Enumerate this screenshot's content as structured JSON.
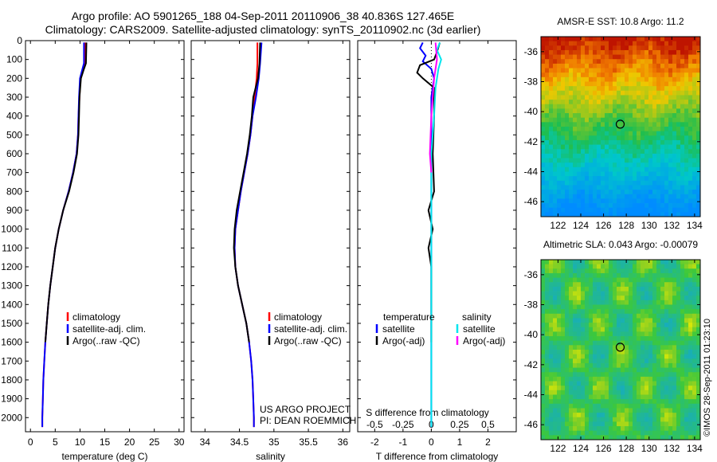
{
  "header": {
    "line1": "Argo profile: AO 5901265_188 04-Sep-2011 20110906_38 40.836S 127.465E",
    "line2": "Climatology: CARS2009. Satellite-adjusted climatology: synTS_20110902.nc (3d earlier)"
  },
  "colors": {
    "climatology": "#ff0000",
    "satellite": "#0000ff",
    "argo": "#000000",
    "salinity_satellite": "#00e5ee",
    "salinity_argo": "#ff00ff"
  },
  "chart_data": [
    {
      "type": "line",
      "id": "temperature",
      "xlabel": "temperature (deg C)",
      "ylabel": "",
      "xlim": [
        -1,
        31
      ],
      "ylim": [
        2075,
        0
      ],
      "xticks": [
        0,
        5,
        10,
        15,
        20,
        25,
        30
      ],
      "yticks": [
        0,
        100,
        200,
        300,
        400,
        500,
        600,
        700,
        800,
        900,
        1000,
        1100,
        1200,
        1300,
        1400,
        1500,
        1600,
        1700,
        1800,
        1900,
        2000
      ],
      "legend": {
        "position": "center-bottom",
        "entries": [
          "climatology",
          "satellite-adj. clim.",
          "Argo(..raw -QC)"
        ]
      },
      "series": [
        {
          "name": "climatology",
          "color": "#ff0000",
          "points": [
            [
              11.0,
              10
            ],
            [
              11.0,
              120
            ],
            [
              10.7,
              150
            ],
            [
              10.1,
              200
            ],
            [
              9.9,
              300
            ],
            [
              9.7,
              400
            ],
            [
              9.6,
              500
            ],
            [
              9.3,
              600
            ],
            [
              8.6,
              700
            ],
            [
              7.7,
              800
            ],
            [
              6.6,
              900
            ],
            [
              5.7,
              1000
            ],
            [
              5.0,
              1100
            ],
            [
              4.5,
              1200
            ],
            [
              4.0,
              1300
            ],
            [
              3.6,
              1400
            ],
            [
              3.3,
              1500
            ],
            [
              3.0,
              1600
            ],
            [
              2.8,
              1700
            ],
            [
              2.6,
              1800
            ],
            [
              2.5,
              1900
            ],
            [
              2.4,
              2000
            ],
            [
              2.4,
              2050
            ]
          ]
        },
        {
          "name": "satellite-adj. clim.",
          "color": "#0000ff",
          "points": [
            [
              10.8,
              10
            ],
            [
              10.8,
              120
            ],
            [
              10.5,
              150
            ],
            [
              10.0,
              200
            ],
            [
              9.8,
              300
            ],
            [
              9.7,
              400
            ],
            [
              9.6,
              500
            ],
            [
              9.3,
              600
            ],
            [
              8.6,
              700
            ],
            [
              7.7,
              800
            ],
            [
              6.6,
              900
            ],
            [
              5.7,
              1000
            ],
            [
              5.0,
              1100
            ],
            [
              4.5,
              1200
            ],
            [
              4.0,
              1300
            ],
            [
              3.6,
              1400
            ],
            [
              3.3,
              1500
            ],
            [
              3.0,
              1600
            ],
            [
              2.8,
              1700
            ],
            [
              2.6,
              1800
            ],
            [
              2.5,
              1900
            ],
            [
              2.4,
              2000
            ],
            [
              2.4,
              2050
            ]
          ]
        },
        {
          "name": "Argo(..raw -QC)",
          "color": "#000000",
          "points": [
            [
              11.3,
              10
            ],
            [
              11.2,
              120
            ],
            [
              10.8,
              150
            ],
            [
              10.2,
              200
            ],
            [
              9.9,
              300
            ],
            [
              9.8,
              400
            ],
            [
              9.7,
              500
            ],
            [
              9.4,
              600
            ],
            [
              8.7,
              700
            ],
            [
              7.8,
              800
            ],
            [
              6.6,
              900
            ],
            [
              5.7,
              1000
            ],
            [
              5.0,
              1100
            ],
            [
              4.5,
              1200
            ],
            [
              4.0,
              1300
            ],
            [
              3.6,
              1400
            ],
            [
              3.3,
              1500
            ],
            [
              3.0,
              1600
            ]
          ]
        }
      ]
    },
    {
      "type": "line",
      "id": "salinity",
      "xlabel": "salinity",
      "ylabel": "",
      "xlim": [
        33.8,
        36.1
      ],
      "ylim": [
        2075,
        0
      ],
      "xticks": [
        34,
        34.5,
        35,
        35.5,
        36
      ],
      "xticklabels": [
        "34",
        "34.5",
        "35",
        "35.5",
        "36"
      ],
      "legend": {
        "position": "center-bottom",
        "entries": [
          "climatology",
          "satellite-adj. clim.",
          "Argo(..raw -QC)"
        ]
      },
      "annotation": [
        "US ARGO PROJECT",
        "PI: DEAN ROEMMICH"
      ],
      "series": [
        {
          "name": "climatology",
          "color": "#ff0000",
          "points": [
            [
              34.76,
              10
            ],
            [
              34.76,
              120
            ],
            [
              34.75,
              200
            ],
            [
              34.72,
              300
            ],
            [
              34.69,
              400
            ],
            [
              34.66,
              500
            ],
            [
              34.62,
              600
            ],
            [
              34.57,
              700
            ],
            [
              34.52,
              800
            ],
            [
              34.48,
              900
            ],
            [
              34.44,
              1000
            ],
            [
              34.43,
              1100
            ],
            [
              34.44,
              1200
            ],
            [
              34.48,
              1300
            ],
            [
              34.54,
              1400
            ],
            [
              34.6,
              1500
            ],
            [
              34.64,
              1600
            ],
            [
              34.67,
              1700
            ],
            [
              34.69,
              1800
            ],
            [
              34.7,
              1900
            ],
            [
              34.71,
              2000
            ],
            [
              34.71,
              2050
            ]
          ]
        },
        {
          "name": "satellite-adj. clim.",
          "color": "#0000ff",
          "points": [
            [
              34.82,
              10
            ],
            [
              34.8,
              120
            ],
            [
              34.78,
              200
            ],
            [
              34.74,
              300
            ],
            [
              34.69,
              400
            ],
            [
              34.66,
              500
            ],
            [
              34.62,
              600
            ],
            [
              34.57,
              700
            ],
            [
              34.52,
              800
            ],
            [
              34.48,
              900
            ],
            [
              34.44,
              1000
            ],
            [
              34.43,
              1100
            ],
            [
              34.44,
              1200
            ],
            [
              34.48,
              1300
            ],
            [
              34.54,
              1400
            ],
            [
              34.6,
              1500
            ],
            [
              34.64,
              1600
            ],
            [
              34.67,
              1700
            ],
            [
              34.69,
              1800
            ],
            [
              34.7,
              1900
            ],
            [
              34.71,
              2000
            ],
            [
              34.71,
              2050
            ]
          ]
        },
        {
          "name": "Argo(..raw -QC)",
          "color": "#000000",
          "points": [
            [
              34.8,
              10
            ],
            [
              34.79,
              120
            ],
            [
              34.77,
              200
            ],
            [
              34.7,
              300
            ],
            [
              34.68,
              400
            ],
            [
              34.65,
              500
            ],
            [
              34.61,
              600
            ],
            [
              34.56,
              700
            ],
            [
              34.51,
              800
            ],
            [
              34.46,
              900
            ],
            [
              34.43,
              1000
            ],
            [
              34.42,
              1100
            ],
            [
              34.44,
              1200
            ],
            [
              34.48,
              1300
            ],
            [
              34.54,
              1400
            ],
            [
              34.6,
              1500
            ],
            [
              34.64,
              1600
            ]
          ]
        }
      ]
    },
    {
      "type": "line",
      "id": "differences",
      "xlabel": "T difference from climatology",
      "xlabel_top": "S difference from climatology",
      "ylabel": "",
      "xlim": [
        -2.6,
        3.0
      ],
      "ylim": [
        2075,
        0
      ],
      "xticks": [
        -2,
        -1,
        0,
        1,
        2
      ],
      "xticklabels_top": [
        "-0.5",
        "-0.25",
        "0",
        "0.25",
        "0.5"
      ],
      "legend": {
        "position": "center-bottom",
        "headers": [
          "temperature",
          "salinity"
        ],
        "entries": [
          "satellite",
          "Argo(-adj)",
          "satellite",
          "Argo(-adj)"
        ]
      },
      "series": [
        {
          "name": "temperature satellite",
          "color": "#0000ff",
          "points": [
            [
              -0.3,
              10
            ],
            [
              -0.4,
              40
            ],
            [
              -0.2,
              80
            ],
            [
              -0.3,
              110
            ],
            [
              0.0,
              150
            ],
            [
              0.1,
              200
            ],
            [
              0.0,
              300
            ],
            [
              0.0,
              500
            ],
            [
              0.0,
              1000
            ],
            [
              0.0,
              1500
            ],
            [
              0.0,
              2050
            ]
          ]
        },
        {
          "name": "temperature Argo(-adj)",
          "color": "#000000",
          "points": [
            [
              0.3,
              10
            ],
            [
              0.2,
              60
            ],
            [
              0.1,
              100
            ],
            [
              -0.4,
              130
            ],
            [
              -0.5,
              170
            ],
            [
              -0.3,
              200
            ],
            [
              0.1,
              250
            ],
            [
              0.1,
              400
            ],
            [
              0.05,
              600
            ],
            [
              0.1,
              800
            ],
            [
              -0.1,
              900
            ],
            [
              0.05,
              1000
            ],
            [
              -0.1,
              1100
            ],
            [
              0.0,
              1200
            ],
            [
              0.0,
              1300
            ],
            [
              0.0,
              1600
            ]
          ]
        },
        {
          "name": "salinity satellite",
          "color": "#00e5ee",
          "points": [
            [
              0.3,
              10
            ],
            [
              0.2,
              50
            ],
            [
              0.35,
              100
            ],
            [
              0.25,
              150
            ],
            [
              0.15,
              250
            ],
            [
              0.1,
              400
            ],
            [
              0.0,
              600
            ],
            [
              0.0,
              1000
            ],
            [
              0.0,
              2050
            ]
          ]
        },
        {
          "name": "salinity Argo(-adj)",
          "color": "#ff00ff",
          "points": [
            [
              0.15,
              10
            ],
            [
              0.2,
              100
            ],
            [
              0.1,
              200
            ],
            [
              0.0,
              400
            ],
            [
              -0.05,
              600
            ],
            [
              0.0,
              700
            ]
          ]
        }
      ]
    },
    {
      "type": "heatmap",
      "id": "sst-map",
      "title": "AMSR-E SST: 10.8 Argo: 11.2",
      "xlim": [
        120.5,
        134.5
      ],
      "ylim": [
        -47,
        -35
      ],
      "xticks": [
        122,
        124,
        126,
        128,
        130,
        132,
        134
      ],
      "yticks": [
        -36,
        -38,
        -40,
        -42,
        -44,
        -46
      ],
      "marker": {
        "lon": 127.465,
        "lat": -40.836
      }
    },
    {
      "type": "heatmap",
      "id": "sla-map",
      "title": "Altimetric SLA: 0.043 Argo: -0.00079",
      "xlim": [
        120.5,
        134.5
      ],
      "ylim": [
        -47,
        -35
      ],
      "xticks": [
        122,
        124,
        126,
        128,
        130,
        132,
        134
      ],
      "yticks": [
        -36,
        -38,
        -40,
        -42,
        -44,
        -46
      ],
      "marker": {
        "lon": 127.465,
        "lat": -40.836
      }
    }
  ],
  "stamp": "©IMOS 28-Sep-2011 01:23:10"
}
